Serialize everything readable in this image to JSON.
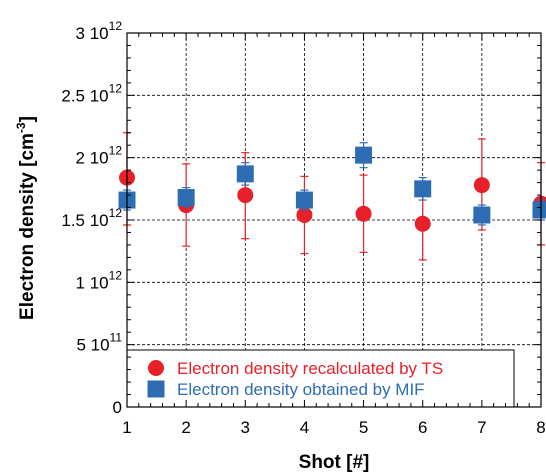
{
  "chart_data": {
    "type": "scatter",
    "xlabel": "Shot [#]",
    "ylabel": {
      "base": "Electron density [cm",
      "sup": "-3",
      "close": "]"
    },
    "xlim": [
      1,
      8
    ],
    "ylim": [
      0,
      3000000000000
    ],
    "x_ticks": [
      1,
      2,
      3,
      4,
      5,
      6,
      7,
      8
    ],
    "x_tick_labels": [
      "1",
      "2",
      "3",
      "4",
      "5",
      "6",
      "7",
      "8"
    ],
    "y_ticks": [
      {
        "value": 0,
        "base": "0",
        "exp": ""
      },
      {
        "value": 500000000000,
        "base": "5 10",
        "exp": "11"
      },
      {
        "value": 1000000000000,
        "base": "1 10",
        "exp": "12"
      },
      {
        "value": 1500000000000,
        "base": "1.5 10",
        "exp": "12"
      },
      {
        "value": 2000000000000,
        "base": "2 10",
        "exp": "12"
      },
      {
        "value": 2500000000000,
        "base": "2.5 10",
        "exp": "12"
      },
      {
        "value": 3000000000000,
        "base": "3 10",
        "exp": "12"
      }
    ],
    "grid": true,
    "legend_position": "bottom-left",
    "series": [
      {
        "name": "Electron density recalculated by TS",
        "marker": "circle",
        "color": "#e8202a",
        "x": [
          1,
          2,
          3,
          4,
          5,
          6,
          7,
          8
        ],
        "y": [
          1840000000000,
          1620000000000,
          1700000000000,
          1540000000000,
          1550000000000,
          1470000000000,
          1780000000000,
          1630000000000
        ],
        "err_low": [
          1460000000000,
          1290000000000,
          1350000000000,
          1230000000000,
          1240000000000,
          1180000000000,
          1420000000000,
          1300000000000
        ],
        "err_high": [
          2200000000000,
          1950000000000,
          2040000000000,
          1850000000000,
          1860000000000,
          1770000000000,
          2150000000000,
          1960000000000
        ]
      },
      {
        "name": "Electron density obtained by MIF",
        "marker": "square",
        "color": "#2e6db4",
        "x": [
          1,
          2,
          3,
          4,
          5,
          6,
          7,
          8
        ],
        "y": [
          1660000000000,
          1680000000000,
          1870000000000,
          1660000000000,
          2020000000000,
          1750000000000,
          1540000000000,
          1580000000000
        ],
        "err_low": [
          1580000000000,
          1600000000000,
          1780000000000,
          1580000000000,
          1920000000000,
          1660000000000,
          1460000000000,
          1500000000000
        ],
        "err_high": [
          1740000000000,
          1760000000000,
          1960000000000,
          1740000000000,
          2120000000000,
          1840000000000,
          1620000000000,
          1660000000000
        ]
      }
    ]
  }
}
